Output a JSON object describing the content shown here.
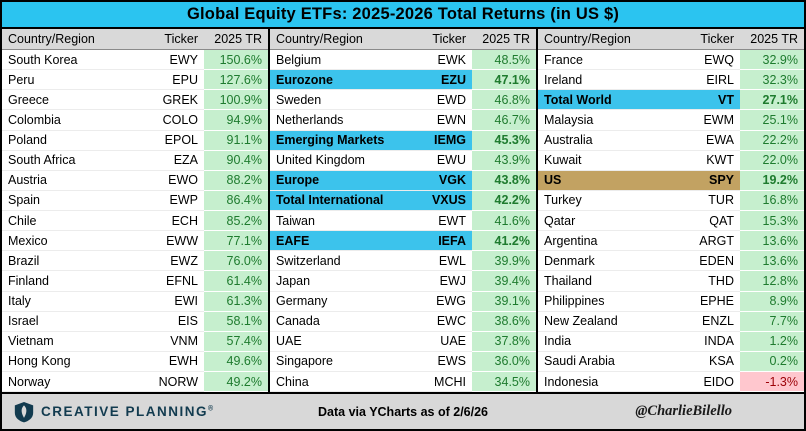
{
  "title": "Global Equity ETFs: 2025-2026 Total Returns (in US $)",
  "colors": {
    "title_bg": "#2bc4f0",
    "header_bg": "#d9d9d9",
    "highlight_cyan": "#3cc3ec",
    "highlight_tan": "#c2a262",
    "pos_bg": "#c6efce",
    "pos_text": "#1e7b2e",
    "neg_bg": "#ffc7ce",
    "neg_text": "#9c0006",
    "footer_bg": "#d8d8d8",
    "brand": "#123b4f"
  },
  "chart_data": {
    "type": "table",
    "title": "Global Equity ETFs: 2025-2026 Total Returns (in US $)",
    "columns": [
      "Country/Region",
      "Ticker",
      "2025 TR"
    ],
    "groups": [
      {
        "rows": [
          {
            "country": "South Korea",
            "ticker": "EWY",
            "tr": "150.6%"
          },
          {
            "country": "Peru",
            "ticker": "EPU",
            "tr": "127.6%"
          },
          {
            "country": "Greece",
            "ticker": "GREK",
            "tr": "100.9%"
          },
          {
            "country": "Colombia",
            "ticker": "COLO",
            "tr": "94.9%"
          },
          {
            "country": "Poland",
            "ticker": "EPOL",
            "tr": "91.1%"
          },
          {
            "country": "South Africa",
            "ticker": "EZA",
            "tr": "90.4%"
          },
          {
            "country": "Austria",
            "ticker": "EWO",
            "tr": "88.2%"
          },
          {
            "country": "Spain",
            "ticker": "EWP",
            "tr": "86.4%"
          },
          {
            "country": "Chile",
            "ticker": "ECH",
            "tr": "85.2%"
          },
          {
            "country": "Mexico",
            "ticker": "EWW",
            "tr": "77.1%"
          },
          {
            "country": "Brazil",
            "ticker": "EWZ",
            "tr": "76.0%"
          },
          {
            "country": "Finland",
            "ticker": "EFNL",
            "tr": "61.4%"
          },
          {
            "country": "Italy",
            "ticker": "EWI",
            "tr": "61.3%"
          },
          {
            "country": "Israel",
            "ticker": "EIS",
            "tr": "58.1%"
          },
          {
            "country": "Vietnam",
            "ticker": "VNM",
            "tr": "57.4%"
          },
          {
            "country": "Hong Kong",
            "ticker": "EWH",
            "tr": "49.6%"
          },
          {
            "country": "Norway",
            "ticker": "NORW",
            "tr": "49.2%"
          }
        ]
      },
      {
        "rows": [
          {
            "country": "Belgium",
            "ticker": "EWK",
            "tr": "48.5%"
          },
          {
            "country": "Eurozone",
            "ticker": "EZU",
            "tr": "47.1%",
            "hl": "cyan"
          },
          {
            "country": "Sweden",
            "ticker": "EWD",
            "tr": "46.8%"
          },
          {
            "country": "Netherlands",
            "ticker": "EWN",
            "tr": "46.7%"
          },
          {
            "country": "Emerging Markets",
            "ticker": "IEMG",
            "tr": "45.3%",
            "hl": "cyan"
          },
          {
            "country": "United Kingdom",
            "ticker": "EWU",
            "tr": "43.9%"
          },
          {
            "country": "Europe",
            "ticker": "VGK",
            "tr": "43.8%",
            "hl": "cyan"
          },
          {
            "country": "Total International",
            "ticker": "VXUS",
            "tr": "42.2%",
            "hl": "cyan"
          },
          {
            "country": "Taiwan",
            "ticker": "EWT",
            "tr": "41.6%"
          },
          {
            "country": "EAFE",
            "ticker": "IEFA",
            "tr": "41.2%",
            "hl": "cyan"
          },
          {
            "country": "Switzerland",
            "ticker": "EWL",
            "tr": "39.9%"
          },
          {
            "country": "Japan",
            "ticker": "EWJ",
            "tr": "39.4%"
          },
          {
            "country": "Germany",
            "ticker": "EWG",
            "tr": "39.1%"
          },
          {
            "country": "Canada",
            "ticker": "EWC",
            "tr": "38.6%"
          },
          {
            "country": "UAE",
            "ticker": "UAE",
            "tr": "37.8%"
          },
          {
            "country": "Singapore",
            "ticker": "EWS",
            "tr": "36.0%"
          },
          {
            "country": "China",
            "ticker": "MCHI",
            "tr": "34.5%"
          }
        ]
      },
      {
        "rows": [
          {
            "country": "France",
            "ticker": "EWQ",
            "tr": "32.9%"
          },
          {
            "country": "Ireland",
            "ticker": "EIRL",
            "tr": "32.3%"
          },
          {
            "country": "Total World",
            "ticker": "VT",
            "tr": "27.1%",
            "hl": "cyan"
          },
          {
            "country": "Malaysia",
            "ticker": "EWM",
            "tr": "25.1%"
          },
          {
            "country": "Australia",
            "ticker": "EWA",
            "tr": "22.2%"
          },
          {
            "country": "Kuwait",
            "ticker": "KWT",
            "tr": "22.0%"
          },
          {
            "country": "US",
            "ticker": "SPY",
            "tr": "19.2%",
            "hl": "tan"
          },
          {
            "country": "Turkey",
            "ticker": "TUR",
            "tr": "16.8%"
          },
          {
            "country": "Qatar",
            "ticker": "QAT",
            "tr": "15.3%"
          },
          {
            "country": "Argentina",
            "ticker": "ARGT",
            "tr": "13.6%"
          },
          {
            "country": "Denmark",
            "ticker": "EDEN",
            "tr": "13.6%"
          },
          {
            "country": "Thailand",
            "ticker": "THD",
            "tr": "12.8%"
          },
          {
            "country": "Philippines",
            "ticker": "EPHE",
            "tr": "8.9%"
          },
          {
            "country": "New Zealand",
            "ticker": "ENZL",
            "tr": "7.7%"
          },
          {
            "country": "India",
            "ticker": "INDA",
            "tr": "1.2%"
          },
          {
            "country": "Saudi Arabia",
            "ticker": "KSA",
            "tr": "0.2%"
          },
          {
            "country": "Indonesia",
            "ticker": "EIDO",
            "tr": "-1.3%"
          }
        ]
      }
    ]
  },
  "footer": {
    "brand": "CREATIVE PLANNING",
    "reg_mark": "®",
    "center": "Data via YCharts as of 2/6/26",
    "handle": "@CharlieBilello"
  }
}
